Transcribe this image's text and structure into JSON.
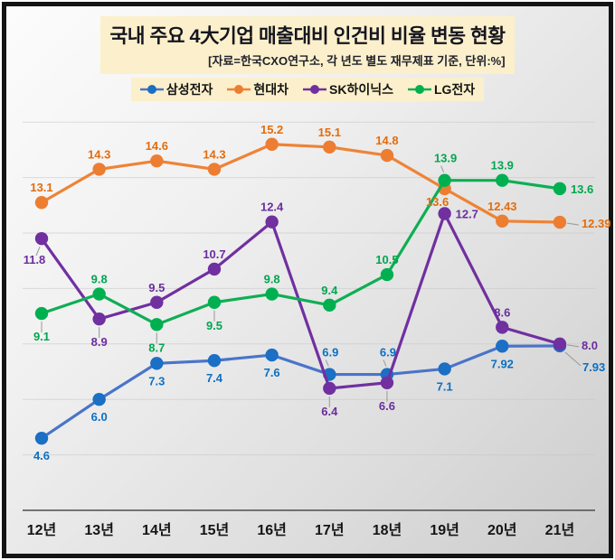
{
  "header": {
    "title": "국내 주요 4大기업 매출대비 인건비 비율 변동 현황",
    "subtitle": "[자료=한국CXO연구소, 각 년도 별도 재무제표 기준, 단위:%]"
  },
  "colors": {
    "frame_border": "#141414",
    "header_bg": "#fbf0cb",
    "axis_line": "#4d4d4d",
    "gridline": "#c4c4c4",
    "leader_line": "#9e9e9e",
    "xaxis_text": "#141414"
  },
  "chart_data": {
    "type": "line",
    "title": "국내 주요 4大기업 매출대비 인건비 비율 변동 현황",
    "subtitle": "[자료=한국CXO연구소, 각 년도 별도 재무제표 기준, 단위:%]",
    "unit": "%",
    "categories": [
      "12년",
      "13년",
      "14년",
      "15년",
      "16년",
      "17년",
      "18년",
      "19년",
      "20년",
      "21년"
    ],
    "ylim": [
      2,
      16.6
    ],
    "grid": true,
    "grid_step": 2,
    "legend_position": "top",
    "series": [
      {
        "name": "삼성전자",
        "line_color": "#4a74c9",
        "marker_color": "#1b6fc4",
        "label_color": "#0a70c4",
        "values": [
          4.6,
          6.0,
          7.3,
          7.4,
          7.6,
          6.9,
          6.9,
          7.1,
          7.92,
          7.93
        ],
        "labels": [
          "4.6",
          "6.0",
          "7.3",
          "7.4",
          "7.6",
          "6.9",
          "6.9",
          "7.1",
          "7.92",
          "7.93"
        ],
        "label_pos": [
          "below",
          "below",
          "below",
          "below",
          "below",
          "above-leader",
          "above-leader",
          "below",
          "below",
          "below-right-leader"
        ]
      },
      {
        "name": "현대차",
        "line_color": "#ee8336",
        "marker_color": "#ed7d31",
        "label_color": "#e46c0a",
        "values": [
          13.1,
          14.3,
          14.6,
          14.3,
          15.2,
          15.1,
          14.8,
          13.6,
          12.43,
          12.39
        ],
        "labels": [
          "13.1",
          "14.3",
          "14.6",
          "14.3",
          "15.2",
          "15.1",
          "14.8",
          "13.6",
          "12.43",
          "12.39"
        ],
        "label_pos": [
          "above",
          "above",
          "above",
          "above",
          "above",
          "above",
          "above",
          "below-left",
          "above",
          "right-leader"
        ]
      },
      {
        "name": "SK하이닉스",
        "line_color": "#7030a0",
        "marker_color": "#7030a0",
        "label_color": "#6a2d9e",
        "values": [
          11.8,
          8.9,
          9.5,
          10.7,
          12.4,
          6.4,
          6.6,
          12.7,
          8.6,
          8.0
        ],
        "labels": [
          "11.8",
          "8.9",
          "9.5",
          "10.7",
          "12.4",
          "6.4",
          "6.6",
          "12.7",
          "8.6",
          "8.0"
        ],
        "label_pos": [
          "below-left-leader",
          "below-leader",
          "above",
          "above",
          "above",
          "below-leader",
          "below-leader",
          "right",
          "above",
          "right-leader"
        ]
      },
      {
        "name": "LG전자",
        "line_color": "#0fae54",
        "marker_color": "#00b050",
        "label_color": "#00a64f",
        "values": [
          9.1,
          9.8,
          8.7,
          9.5,
          9.8,
          9.4,
          10.5,
          13.9,
          13.9,
          13.6
        ],
        "labels": [
          "9.1",
          "9.8",
          "8.7",
          "9.5",
          "9.8",
          "9.4",
          "10.5",
          "13.9",
          "13.9",
          "13.6"
        ],
        "label_pos": [
          "below-leader",
          "above",
          "below-leader",
          "below-leader",
          "above",
          "above",
          "above",
          "above-leader",
          "above",
          "right"
        ]
      }
    ]
  }
}
